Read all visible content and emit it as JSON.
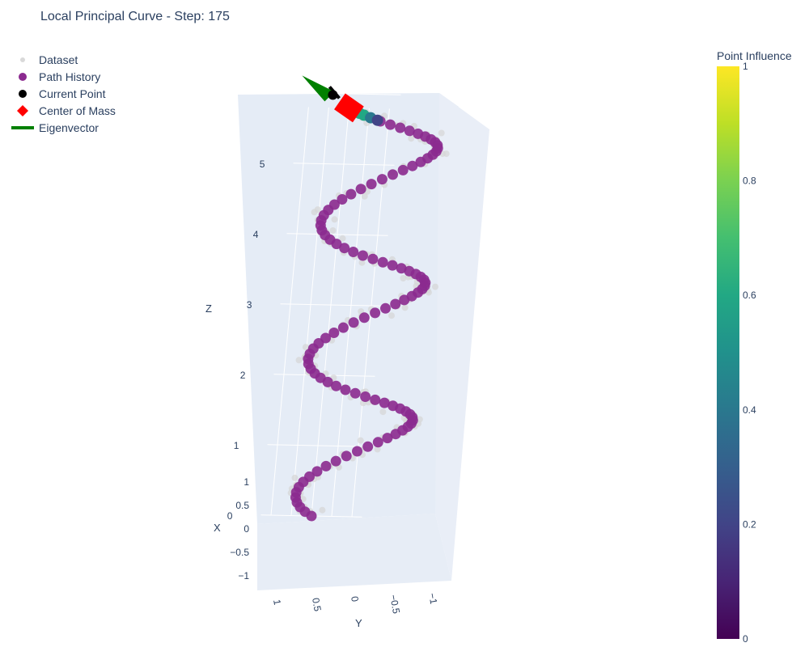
{
  "chart_data": {
    "type": "scatter3d",
    "title": "Local Principal Curve - Step: 175",
    "axes": {
      "x": {
        "label": "X",
        "ticks": [
          "1",
          "0.5",
          "0",
          "−0.5",
          "−1"
        ]
      },
      "y": {
        "label": "Y",
        "ticks": [
          "1",
          "0.5",
          "0",
          "−0.5",
          "−1"
        ]
      },
      "z": {
        "label": "Z",
        "ticks": [
          "0",
          "1",
          "2",
          "3",
          "4",
          "5"
        ]
      }
    },
    "legend": {
      "placement": "top-left",
      "items": [
        {
          "name": "Dataset",
          "symbol": "circle",
          "color": "#d9d9d9"
        },
        {
          "name": "Path History",
          "symbol": "circle",
          "color": "#8b2a8f"
        },
        {
          "name": "Current Point",
          "symbol": "circle",
          "color": "#000000"
        },
        {
          "name": "Center of Mass",
          "symbol": "diamond",
          "color": "#ff0000"
        },
        {
          "name": "Eigenvector",
          "symbol": "line",
          "color": "#008000"
        }
      ]
    },
    "colorbar": {
      "title": "Point Influence",
      "colorscale": "viridis",
      "range": [
        0,
        1
      ],
      "ticks": [
        "0",
        "0.2",
        "0.4",
        "0.6",
        "0.8",
        "1"
      ]
    },
    "helix": {
      "radius": 1,
      "turns": 3,
      "z_range": [
        0,
        5.8
      ]
    },
    "path_history_points": 100,
    "dataset_points": 175,
    "colors": {
      "scene_bg": "#e5ecf6",
      "path": "#8b2a8f",
      "dataset": "#d6d6d6",
      "eigenvector": "#008000",
      "center_of_mass": "#ff0000"
    }
  }
}
